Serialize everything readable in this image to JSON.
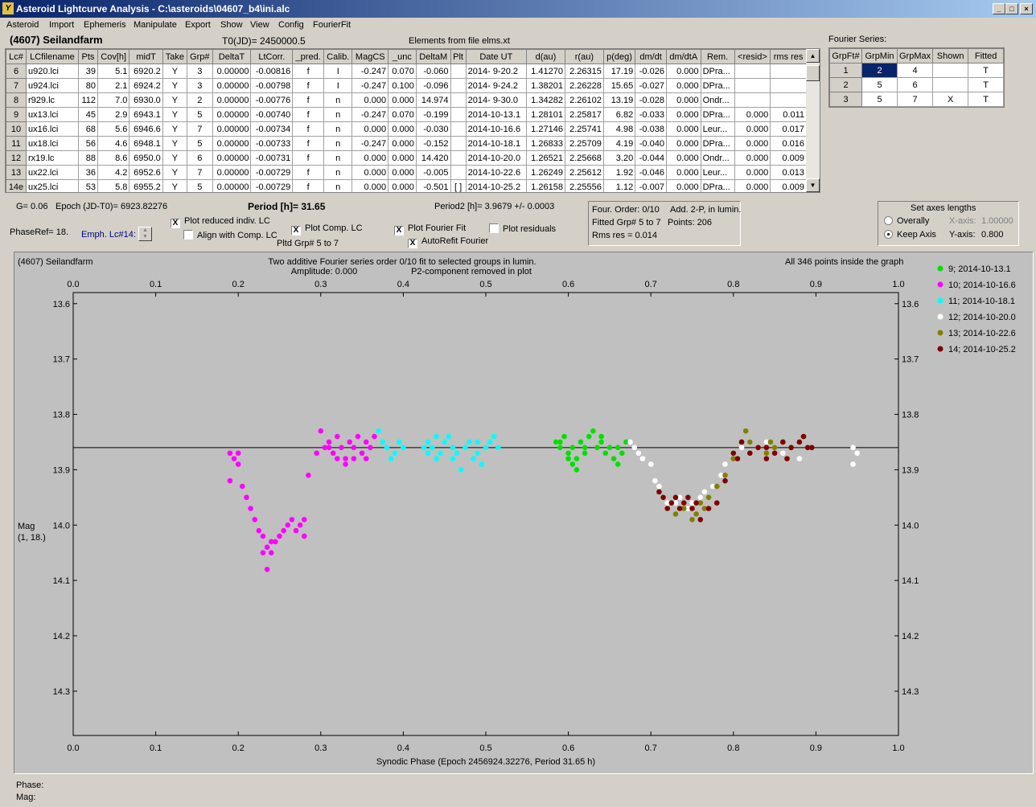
{
  "window": {
    "title": "Asteroid Lightcurve Analysis - C:\\asteroids\\04607_b4\\ini.alc",
    "icon": "app-icon"
  },
  "menu": [
    "Asteroid",
    "Import",
    "Ephemeris",
    "Manipulate",
    "Export",
    "Show",
    "View",
    "Config",
    "FourierFit"
  ],
  "header": {
    "asteroid": "(4607) Seilandfarm",
    "t0": "T0(JD)= 2450000.5",
    "elements": "Elements from file elms.xt"
  },
  "lc_table": {
    "columns": [
      "Lc#",
      "LCfilename",
      "Pts",
      "Cov[h]",
      "midT",
      "Take",
      "Grp#",
      "DeltaT",
      "LtCorr.",
      "_pred.",
      "Calib.",
      "MagCS",
      "_unc",
      "DeltaM",
      "Plt",
      "Date UT",
      "d(au)",
      "r(au)",
      "p(deg)",
      "dm/dt",
      "dm/dtA",
      "Rem.",
      "<resid>",
      "rms res"
    ],
    "rows": [
      [
        "6",
        "u920.lci",
        "39",
        "5.1",
        "6920.2",
        "Y",
        "3",
        "0.00000",
        "-0.00816",
        "f",
        "I",
        "-0.247",
        "0.070",
        "-0.060",
        "",
        "2014- 9-20.2",
        "1.41270",
        "2.26315",
        "17.19",
        "-0.026",
        "0.000",
        "DPra...",
        "",
        ""
      ],
      [
        "7",
        "u924.lci",
        "80",
        "2.1",
        "6924.2",
        "Y",
        "3",
        "0.00000",
        "-0.00798",
        "f",
        "I",
        "-0.247",
        "0.100",
        "-0.096",
        "",
        "2014- 9-24.2",
        "1.38201",
        "2.26228",
        "15.65",
        "-0.027",
        "0.000",
        "DPra...",
        "",
        ""
      ],
      [
        "8",
        "r929.lc",
        "112",
        "7.0",
        "6930.0",
        "Y",
        "2",
        "0.00000",
        "-0.00776",
        "f",
        "n",
        "0.000",
        "0.000",
        "14.974",
        "",
        "2014- 9-30.0",
        "1.34282",
        "2.26102",
        "13.19",
        "-0.028",
        "0.000",
        "Ondr...",
        "",
        ""
      ],
      [
        "9",
        "ux13.lci",
        "45",
        "2.9",
        "6943.1",
        "Y",
        "5",
        "0.00000",
        "-0.00740",
        "f",
        "n",
        "-0.247",
        "0.070",
        "-0.199",
        "",
        "2014-10-13.1",
        "1.28101",
        "2.25817",
        "6.82",
        "-0.033",
        "0.000",
        "DPra...",
        "0.000",
        "0.011"
      ],
      [
        "10",
        "ux16.lci",
        "68",
        "5.6",
        "6946.6",
        "Y",
        "7",
        "0.00000",
        "-0.00734",
        "f",
        "n",
        "0.000",
        "0.000",
        "-0.030",
        "",
        "2014-10-16.6",
        "1.27146",
        "2.25741",
        "4.98",
        "-0.038",
        "0.000",
        "Leur...",
        "0.000",
        "0.017"
      ],
      [
        "11",
        "ux18.lci",
        "56",
        "4.6",
        "6948.1",
        "Y",
        "5",
        "0.00000",
        "-0.00733",
        "f",
        "n",
        "-0.247",
        "0.000",
        "-0.152",
        "",
        "2014-10-18.1",
        "1.26833",
        "2.25709",
        "4.19",
        "-0.040",
        "0.000",
        "DPra...",
        "0.000",
        "0.016"
      ],
      [
        "12",
        "rx19.lc",
        "88",
        "8.6",
        "6950.0",
        "Y",
        "6",
        "0.00000",
        "-0.00731",
        "f",
        "n",
        "0.000",
        "0.000",
        "14.420",
        "",
        "2014-10-20.0",
        "1.26521",
        "2.25668",
        "3.20",
        "-0.044",
        "0.000",
        "Ondr...",
        "0.000",
        "0.009"
      ],
      [
        "13",
        "ux22.lci",
        "36",
        "4.2",
        "6952.6",
        "Y",
        "7",
        "0.00000",
        "-0.00729",
        "f",
        "n",
        "0.000",
        "0.000",
        "-0.005",
        "",
        "2014-10-22.6",
        "1.26249",
        "2.25612",
        "1.92",
        "-0.046",
        "0.000",
        "Leur...",
        "0.000",
        "0.013"
      ],
      [
        "14e",
        "ux25.lci",
        "53",
        "5.8",
        "6955.2",
        "Y",
        "5",
        "0.00000",
        "-0.00729",
        "f",
        "n",
        "0.000",
        "0.000",
        "-0.501",
        "[ ]",
        "2014-10-25.2",
        "1.26158",
        "2.25556",
        "1.12",
        "-0.007",
        "0.000",
        "DPra...",
        "0.000",
        "0.009"
      ]
    ]
  },
  "fourier_series": {
    "label": "Fourier Series:",
    "columns": [
      "GrpFt#",
      "GrpMin",
      "GrpMax",
      "Shown",
      "Fitted"
    ],
    "rows": [
      [
        "1",
        "2",
        "4",
        "",
        "T"
      ],
      [
        "2",
        "5",
        "6",
        "",
        "T"
      ],
      [
        "3",
        "5",
        "7",
        "X",
        "T"
      ]
    ]
  },
  "controls": {
    "g": "G= 0.06",
    "epoch": "Epoch (JD-T0)= 6923.82276",
    "period": "Period [h]= 31.65",
    "period2": "Period2 [h]= 3.9679 +/- 0.0003",
    "phaseref": "PhaseRef= 18.",
    "emph": "Emph. Lc#14:",
    "plot_reduced": "Plot reduced indiv. LC",
    "align": "Align with Comp. LC",
    "plot_comp": "Plot Comp. LC",
    "pltd_grp": "Pltd Grp#  5  to   7",
    "plot_fourier": "Plot Fourier Fit",
    "autorefit": "AutoRefit Fourier",
    "plot_residuals": "Plot residuals",
    "check": "X"
  },
  "fit_info": {
    "order": "Four. Order:  0/10",
    "add": "Add. 2-P, in lumin.",
    "fitted": "Fitted Grp# 5 to 7",
    "points": "Points: 206",
    "rms": "Rms res     = 0.014"
  },
  "axes_box": {
    "title": "Set axes lengths",
    "overally": "Overally",
    "keep": "Keep Axis",
    "xaxis": "X-axis:",
    "xval": "1.00000",
    "yaxis": "Y-axis:",
    "yval": "0.800"
  },
  "status": {
    "phase": "Phase:",
    "mag": "Mag:"
  },
  "chart_data": {
    "type": "scatter",
    "title": "(4607) Seilandfarm",
    "subtitle": [
      "Two additive Fourier series order 0/10 fit to selected groups in lumin.",
      "Amplitude: 0.000",
      "P2-component removed in plot"
    ],
    "note": "All 346 points inside the graph",
    "xlabel": "Synodic Phase (Epoch 2456924.32276, Period 31.65 h)",
    "ylabel": [
      "Mag",
      "(1, 18.)"
    ],
    "xlim": [
      0,
      1
    ],
    "ylim": [
      14.38,
      13.58
    ],
    "xticks": [
      "0.0",
      "0.1",
      "0.2",
      "0.3",
      "0.4",
      "0.5",
      "0.6",
      "0.7",
      "0.8",
      "0.9",
      "1.0"
    ],
    "yticks": [
      "13.6",
      "13.7",
      "13.8",
      "13.9",
      "14.0",
      "14.1",
      "14.2",
      "14.3"
    ],
    "fit_line": 13.86,
    "series": [
      {
        "name": "9; 2014-10-13.1",
        "color": "#00e000",
        "points": [
          [
            0.585,
            13.85
          ],
          [
            0.59,
            13.86
          ],
          [
            0.595,
            13.84
          ],
          [
            0.6,
            13.87
          ],
          [
            0.605,
            13.86
          ],
          [
            0.61,
            13.88
          ],
          [
            0.615,
            13.85
          ],
          [
            0.62,
            13.87
          ],
          [
            0.625,
            13.84
          ],
          [
            0.63,
            13.83
          ],
          [
            0.635,
            13.86
          ],
          [
            0.64,
            13.85
          ],
          [
            0.645,
            13.87
          ],
          [
            0.65,
            13.86
          ],
          [
            0.655,
            13.88
          ],
          [
            0.66,
            13.86
          ],
          [
            0.665,
            13.87
          ],
          [
            0.67,
            13.85
          ],
          [
            0.6,
            13.88
          ],
          [
            0.61,
            13.9
          ],
          [
            0.59,
            13.85
          ],
          [
            0.62,
            13.86
          ],
          [
            0.64,
            13.84
          ],
          [
            0.66,
            13.89
          ],
          [
            0.605,
            13.89
          ]
        ]
      },
      {
        "name": "10; 2014-10-16.6",
        "color": "#ff00ff",
        "points": [
          [
            0.19,
            13.87
          ],
          [
            0.195,
            13.88
          ],
          [
            0.2,
            13.87
          ],
          [
            0.2,
            13.89
          ],
          [
            0.19,
            13.92
          ],
          [
            0.205,
            13.93
          ],
          [
            0.21,
            13.95
          ],
          [
            0.215,
            13.97
          ],
          [
            0.22,
            13.99
          ],
          [
            0.225,
            14.01
          ],
          [
            0.23,
            14.02
          ],
          [
            0.23,
            14.05
          ],
          [
            0.235,
            14.04
          ],
          [
            0.24,
            14.03
          ],
          [
            0.245,
            14.03
          ],
          [
            0.25,
            14.02
          ],
          [
            0.255,
            14.01
          ],
          [
            0.26,
            14.0
          ],
          [
            0.265,
            13.99
          ],
          [
            0.27,
            14.01
          ],
          [
            0.275,
            14.0
          ],
          [
            0.28,
            13.99
          ],
          [
            0.28,
            14.02
          ],
          [
            0.235,
            14.08
          ],
          [
            0.24,
            14.05
          ],
          [
            0.285,
            13.91
          ],
          [
            0.295,
            13.87
          ],
          [
            0.3,
            13.83
          ],
          [
            0.305,
            13.86
          ],
          [
            0.31,
            13.85
          ],
          [
            0.315,
            13.87
          ],
          [
            0.32,
            13.84
          ],
          [
            0.325,
            13.86
          ],
          [
            0.33,
            13.88
          ],
          [
            0.335,
            13.85
          ],
          [
            0.34,
            13.86
          ],
          [
            0.345,
            13.84
          ],
          [
            0.35,
            13.87
          ],
          [
            0.355,
            13.85
          ],
          [
            0.36,
            13.86
          ],
          [
            0.365,
            13.84
          ],
          [
            0.33,
            13.89
          ],
          [
            0.32,
            13.88
          ],
          [
            0.34,
            13.88
          ],
          [
            0.31,
            13.86
          ],
          [
            0.355,
            13.88
          ]
        ]
      },
      {
        "name": "11; 2014-10-18.1",
        "color": "#00ffff",
        "points": [
          [
            0.37,
            13.83
          ],
          [
            0.375,
            13.85
          ],
          [
            0.38,
            13.86
          ],
          [
            0.385,
            13.88
          ],
          [
            0.39,
            13.87
          ],
          [
            0.395,
            13.85
          ],
          [
            0.4,
            13.86
          ],
          [
            0.425,
            13.86
          ],
          [
            0.43,
            13.85
          ],
          [
            0.435,
            13.86
          ],
          [
            0.44,
            13.84
          ],
          [
            0.445,
            13.87
          ],
          [
            0.45,
            13.85
          ],
          [
            0.455,
            13.84
          ],
          [
            0.46,
            13.86
          ],
          [
            0.465,
            13.87
          ],
          [
            0.47,
            13.9
          ],
          [
            0.475,
            13.86
          ],
          [
            0.48,
            13.85
          ],
          [
            0.485,
            13.88
          ],
          [
            0.49,
            13.87
          ],
          [
            0.495,
            13.89
          ],
          [
            0.5,
            13.86
          ],
          [
            0.505,
            13.85
          ],
          [
            0.51,
            13.84
          ],
          [
            0.515,
            13.86
          ],
          [
            0.46,
            13.88
          ],
          [
            0.44,
            13.88
          ],
          [
            0.43,
            13.87
          ],
          [
            0.49,
            13.85
          ]
        ]
      },
      {
        "name": "12; 2014-10-20.0",
        "color": "#ffffff",
        "points": [
          [
            0.675,
            13.85
          ],
          [
            0.68,
            13.86
          ],
          [
            0.685,
            13.87
          ],
          [
            0.69,
            13.88
          ],
          [
            0.7,
            13.89
          ],
          [
            0.705,
            13.92
          ],
          [
            0.71,
            13.93
          ],
          [
            0.715,
            13.95
          ],
          [
            0.72,
            13.96
          ],
          [
            0.73,
            13.96
          ],
          [
            0.735,
            13.95
          ],
          [
            0.745,
            13.97
          ],
          [
            0.75,
            13.96
          ],
          [
            0.76,
            13.95
          ],
          [
            0.765,
            13.94
          ],
          [
            0.775,
            13.93
          ],
          [
            0.785,
            13.91
          ],
          [
            0.79,
            13.89
          ],
          [
            0.8,
            13.87
          ],
          [
            0.81,
            13.86
          ],
          [
            0.82,
            13.85
          ],
          [
            0.83,
            13.86
          ],
          [
            0.84,
            13.85
          ],
          [
            0.85,
            13.86
          ],
          [
            0.86,
            13.87
          ],
          [
            0.87,
            13.86
          ],
          [
            0.88,
            13.88
          ],
          [
            0.945,
            13.86
          ],
          [
            0.945,
            13.89
          ],
          [
            0.95,
            13.87
          ]
        ]
      },
      {
        "name": "13; 2014-10-22.6",
        "color": "#808000",
        "points": [
          [
            0.73,
            13.98
          ],
          [
            0.74,
            13.97
          ],
          [
            0.75,
            13.99
          ],
          [
            0.755,
            13.98
          ],
          [
            0.76,
            13.96
          ],
          [
            0.765,
            13.97
          ],
          [
            0.77,
            13.95
          ],
          [
            0.78,
            13.93
          ],
          [
            0.79,
            13.91
          ],
          [
            0.8,
            13.88
          ],
          [
            0.81,
            13.85
          ],
          [
            0.815,
            13.83
          ],
          [
            0.82,
            13.85
          ],
          [
            0.83,
            13.86
          ],
          [
            0.84,
            13.87
          ],
          [
            0.845,
            13.85
          ],
          [
            0.85,
            13.86
          ],
          [
            0.86,
            13.85
          ],
          [
            0.87,
            13.86
          ]
        ]
      },
      {
        "name": "14; 2014-10-25.2",
        "color": "#800000",
        "points": [
          [
            0.71,
            13.94
          ],
          [
            0.715,
            13.95
          ],
          [
            0.72,
            13.97
          ],
          [
            0.725,
            13.96
          ],
          [
            0.73,
            13.95
          ],
          [
            0.735,
            13.97
          ],
          [
            0.74,
            13.96
          ],
          [
            0.745,
            13.95
          ],
          [
            0.75,
            13.97
          ],
          [
            0.755,
            13.96
          ],
          [
            0.76,
            13.99
          ],
          [
            0.77,
            13.97
          ],
          [
            0.78,
            13.96
          ],
          [
            0.79,
            13.92
          ],
          [
            0.8,
            13.87
          ],
          [
            0.805,
            13.88
          ],
          [
            0.81,
            13.85
          ],
          [
            0.82,
            13.87
          ],
          [
            0.83,
            13.86
          ],
          [
            0.84,
            13.88
          ],
          [
            0.85,
            13.87
          ],
          [
            0.86,
            13.85
          ],
          [
            0.87,
            13.86
          ],
          [
            0.88,
            13.85
          ],
          [
            0.885,
            13.84
          ],
          [
            0.89,
            13.86
          ],
          [
            0.895,
            13.86
          ],
          [
            0.84,
            13.86
          ],
          [
            0.865,
            13.88
          ]
        ]
      }
    ]
  }
}
